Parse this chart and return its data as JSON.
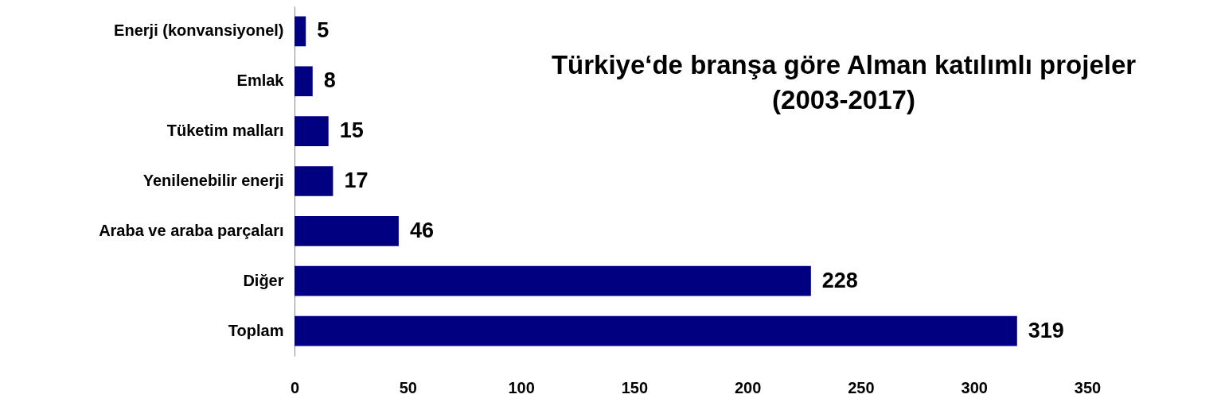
{
  "chart_data": {
    "type": "bar",
    "orientation": "horizontal",
    "title": "Türkiye‘de branşa göre Alman katılımlı projeler\n(2003-2017)",
    "categories": [
      "Enerji (konvansiyonel)",
      "Emlak",
      "Tüketim malları",
      "Yenilenebilir enerji",
      "Araba ve araba parçaları",
      "Diğer",
      "Toplam"
    ],
    "values": [
      5,
      8,
      15,
      17,
      46,
      228,
      319
    ],
    "color": "#000080",
    "xlim": [
      0,
      350
    ],
    "xticks": [
      0,
      50,
      100,
      150,
      200,
      250,
      300,
      350
    ],
    "grid": false,
    "data_labels": true
  }
}
